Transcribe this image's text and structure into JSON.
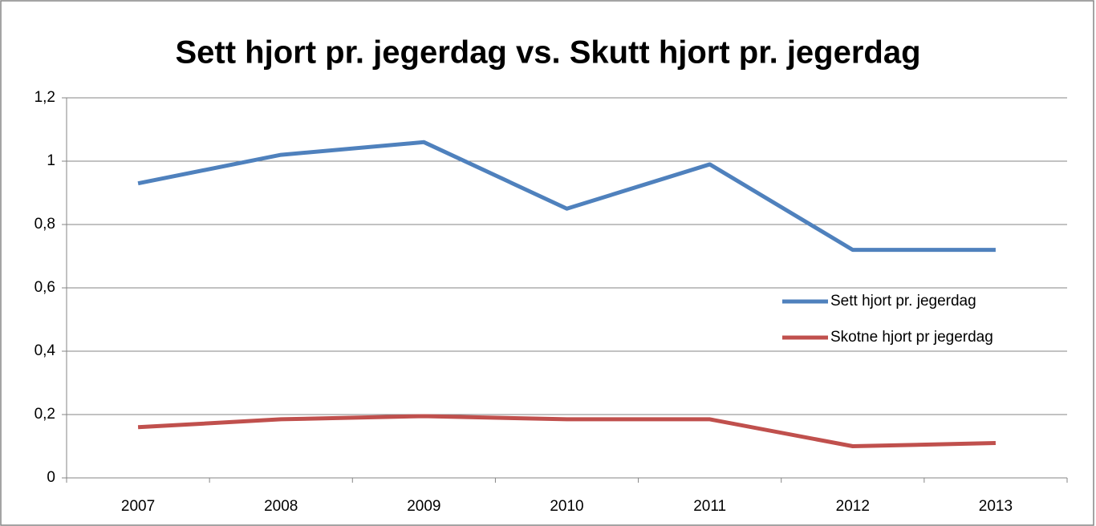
{
  "chart_data": {
    "type": "line",
    "title": "Sett hjort pr. jegerdag vs. Skutt hjort pr. jegerdag",
    "categories": [
      "2007",
      "2008",
      "2009",
      "2010",
      "2011",
      "2012",
      "2013"
    ],
    "series": [
      {
        "name": "Sett hjort pr. jegerdag",
        "color": "#4f81bd",
        "values": [
          0.93,
          1.02,
          1.06,
          0.85,
          0.99,
          0.72,
          0.72
        ]
      },
      {
        "name": "Skotne hjort pr jegerdag",
        "color": "#c0504d",
        "values": [
          0.16,
          0.185,
          0.195,
          0.185,
          0.185,
          0.1,
          0.11
        ]
      }
    ],
    "ylim": [
      0,
      1.2
    ],
    "yticks": [
      0,
      {
        "value": 0.2,
        "label": "0,2"
      },
      {
        "value": 0.4,
        "label": "0,4"
      },
      {
        "value": 0.6,
        "label": "0,6"
      },
      {
        "value": 0.8,
        "label": "0,8"
      },
      1,
      {
        "value": 1.2,
        "label": "1,2"
      }
    ],
    "grid": true,
    "legend": "right"
  }
}
